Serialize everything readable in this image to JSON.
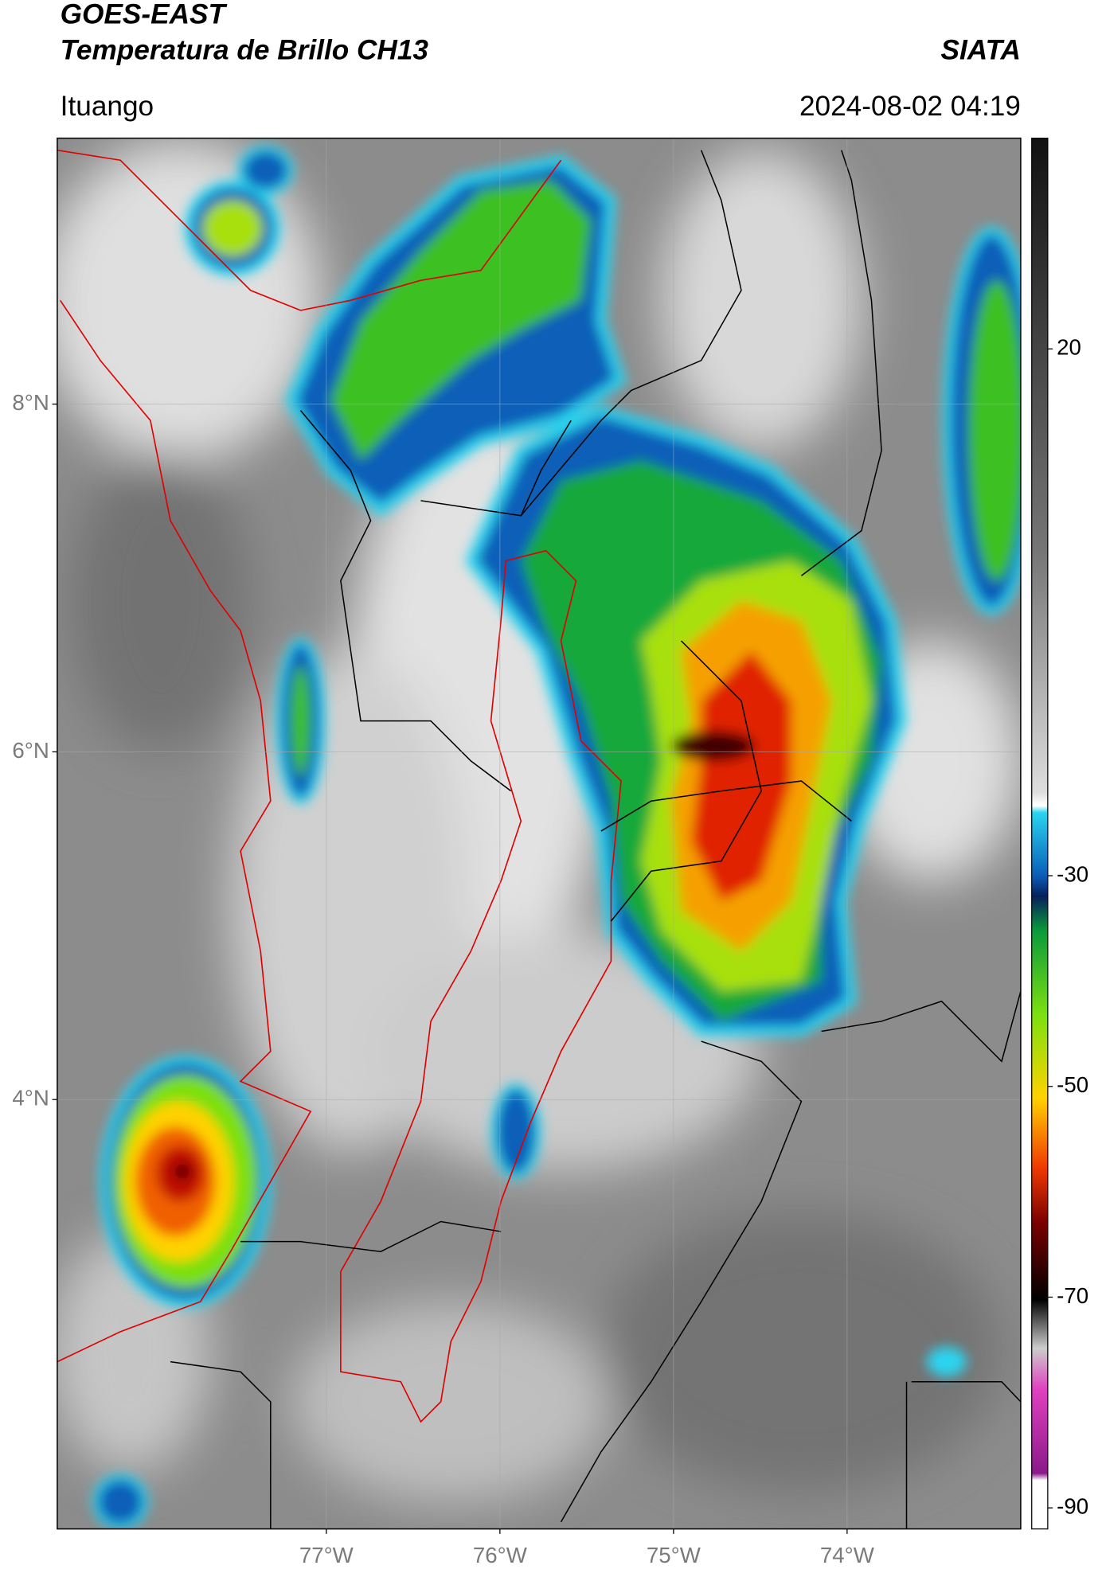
{
  "header": {
    "title": "GOES-EAST",
    "subtitle": "Temperatura de Brillo CH13",
    "brand": "SIATA",
    "location": "Ituango",
    "datetime": "2024-08-02 04:19"
  },
  "map": {
    "xlim": [
      -78.55,
      -73.0
    ],
    "ylim": [
      1.53,
      9.53
    ],
    "xticks": [
      {
        "value": -77,
        "label": "77°W"
      },
      {
        "value": -76,
        "label": "76°W"
      },
      {
        "value": -75,
        "label": "75°W"
      },
      {
        "value": -74,
        "label": "74°W"
      }
    ],
    "yticks": [
      {
        "value": 4,
        "label": "4°N"
      },
      {
        "value": 6,
        "label": "6°N"
      },
      {
        "value": 8,
        "label": "8°N"
      }
    ],
    "grid": true
  },
  "colorbar": {
    "clim": [
      -92,
      40
    ],
    "ticks": [
      20,
      -30,
      -50,
      -70,
      -90
    ]
  }
}
